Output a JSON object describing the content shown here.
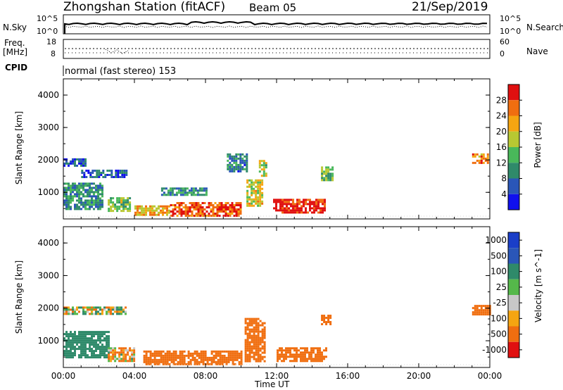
{
  "header": {
    "station": "Zhongshan Station (fitACF)",
    "beam": "Beam 05",
    "date": "21/Sep/2019"
  },
  "strip_labels": {
    "nsky": "N.Sky",
    "nsearch": "N.Search",
    "freq_line1": "Freq.",
    "freq_line2": "[MHz]",
    "nave": "Nave",
    "cpid": "CPID",
    "cpid_text": "normal (fast stereo) 153"
  },
  "strip_ticks": {
    "noise_left": [
      "10^5",
      "10^0"
    ],
    "noise_right": [
      "10^5",
      "10^0"
    ],
    "freq_left": [
      "18",
      "8"
    ],
    "nave_right": [
      "60",
      "0"
    ]
  },
  "colors": {
    "power_scale": [
      "#1010ee",
      "#2a56b8",
      "#2f8a6a",
      "#49b85a",
      "#b8c832",
      "#f5a511",
      "#f06e10",
      "#e01010"
    ],
    "velocity_scale": [
      "#e01010",
      "#f06e10",
      "#f5a511",
      "#c8c8c8",
      "#55b84a",
      "#2f8a6a",
      "#2a56b8",
      "#1a3ec8"
    ]
  },
  "chart_data": [
    {
      "type": "heatmap",
      "title": "Power",
      "ylabel": "Slant Range [km]",
      "xlabel": "Time UT",
      "x_ticks": [
        "00:00",
        "04:00",
        "08:00",
        "12:00",
        "16:00",
        "20:00",
        "00:00"
      ],
      "x_range_hours": [
        0,
        24
      ],
      "y_ticks": [
        1000,
        2000,
        3000,
        4000
      ],
      "y_range": [
        180,
        4500
      ],
      "colorbar_label": "Power [dB]",
      "colorbar_ticks": [
        "4",
        "8",
        "12",
        "16",
        "20",
        "24",
        "28"
      ],
      "colorbar_range": [
        0,
        30
      ],
      "regions": [
        {
          "t0": 0.0,
          "t1": 2.2,
          "r0": 500,
          "r1": 1300,
          "value": 10
        },
        {
          "t0": 0.0,
          "t1": 1.2,
          "r0": 1800,
          "r1": 2050,
          "value": 6
        },
        {
          "t0": 1.0,
          "t1": 3.6,
          "r0": 1500,
          "r1": 1700,
          "value": 6
        },
        {
          "t0": 2.5,
          "t1": 3.8,
          "r0": 400,
          "r1": 850,
          "value": 14
        },
        {
          "t0": 4.0,
          "t1": 6.0,
          "r0": 300,
          "r1": 600,
          "value": 20
        },
        {
          "t0": 5.5,
          "t1": 8.0,
          "r0": 950,
          "r1": 1150,
          "value": 10
        },
        {
          "t0": 6.0,
          "t1": 10.0,
          "r0": 300,
          "r1": 700,
          "value": 26
        },
        {
          "t0": 9.2,
          "t1": 10.3,
          "r0": 1650,
          "r1": 2200,
          "value": 8
        },
        {
          "t0": 10.3,
          "t1": 11.2,
          "r0": 600,
          "r1": 1400,
          "value": 18
        },
        {
          "t0": 11.0,
          "t1": 11.4,
          "r0": 1500,
          "r1": 2000,
          "value": 16
        },
        {
          "t0": 11.8,
          "t1": 14.7,
          "r0": 350,
          "r1": 800,
          "value": 28
        },
        {
          "t0": 14.5,
          "t1": 15.2,
          "r0": 1400,
          "r1": 1800,
          "value": 14
        },
        {
          "t0": 23.0,
          "t1": 23.9,
          "r0": 1900,
          "r1": 2200,
          "value": 22
        }
      ]
    },
    {
      "type": "heatmap",
      "title": "Velocity",
      "ylabel": "Slant Range [km]",
      "xlabel": "Time UT",
      "x_ticks": [
        "00:00",
        "04:00",
        "08:00",
        "12:00",
        "16:00",
        "20:00",
        "00:00"
      ],
      "x_range_hours": [
        0,
        24
      ],
      "y_ticks": [
        1000,
        2000,
        3000,
        4000
      ],
      "y_range": [
        180,
        4500
      ],
      "colorbar_label": "Velocity [m s^-1]",
      "colorbar_ticks": [
        "1000",
        "500",
        "100",
        "25",
        "-25",
        "-100",
        "-500",
        "-1000"
      ],
      "regions": [
        {
          "t0": 0.0,
          "t1": 2.5,
          "r0": 500,
          "r1": 1300,
          "value": 300
        },
        {
          "t0": 0.0,
          "t1": 3.5,
          "r0": 1800,
          "r1": 2050,
          "value": 0
        },
        {
          "t0": 2.5,
          "t1": 4.0,
          "r0": 400,
          "r1": 800,
          "value": -50
        },
        {
          "t0": 4.5,
          "t1": 10.0,
          "r0": 300,
          "r1": 700,
          "value": -300
        },
        {
          "t0": 10.2,
          "t1": 11.3,
          "r0": 400,
          "r1": 1700,
          "value": -300
        },
        {
          "t0": 12.0,
          "t1": 14.8,
          "r0": 350,
          "r1": 800,
          "value": -300
        },
        {
          "t0": 14.5,
          "t1": 15.0,
          "r0": 1500,
          "r1": 1800,
          "value": -300
        },
        {
          "t0": 23.0,
          "t1": 24.0,
          "r0": 1800,
          "r1": 2100,
          "value": -300
        }
      ]
    }
  ]
}
